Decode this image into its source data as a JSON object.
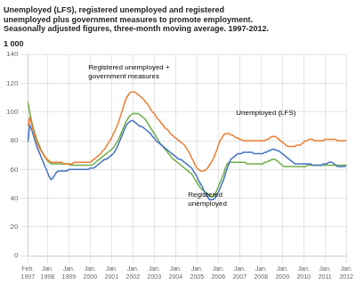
{
  "chart_data": {
    "type": "line",
    "title": [
      "Unemployed (LFS), registered unemployed and registered",
      "unemployed plus government measures to promote employment.",
      "Seasonally adjusted figures, three-month moving average. 1997-2012."
    ],
    "ylabel": "1 000",
    "categories": [
      "Feb.\n1997",
      null,
      null,
      null,
      null,
      null,
      null,
      null,
      null,
      null,
      null,
      "Jan.\n1998",
      null,
      null,
      null,
      null,
      null,
      null,
      null,
      null,
      null,
      null,
      null,
      "Jan.\n1999",
      null,
      null,
      null,
      null,
      null,
      null,
      null,
      null,
      null,
      null,
      null,
      "Jan.\n2000",
      null,
      null,
      null,
      null,
      null,
      null,
      null,
      null,
      null,
      null,
      null,
      "Jan.\n2001",
      null,
      null,
      null,
      null,
      null,
      null,
      null,
      null,
      null,
      null,
      null,
      "Jan.\n2002",
      null,
      null,
      null,
      null,
      null,
      null,
      null,
      null,
      null,
      null,
      null,
      "Jan.\n2003",
      null,
      null,
      null,
      null,
      null,
      null,
      null,
      null,
      null,
      null,
      null,
      "Jan.\n2004",
      null,
      null,
      null,
      null,
      null,
      null,
      null,
      null,
      null,
      null,
      null,
      "Jan.\n2005",
      null,
      null,
      null,
      null,
      null,
      null,
      null,
      null,
      null,
      null,
      null,
      "Jan.\n2006",
      null,
      null,
      null,
      null,
      null,
      null,
      null,
      null,
      null,
      null,
      null,
      "Jan.\n2007",
      null,
      null,
      null,
      null,
      null,
      null,
      null,
      null,
      null,
      null,
      null,
      "Jan.\n2008",
      null,
      null,
      null,
      null,
      null,
      null,
      null,
      null,
      null,
      null,
      null,
      "Jan.\n2009",
      null,
      null,
      null,
      null,
      null,
      null,
      null,
      null,
      null,
      null,
      null,
      "Jan.\n2010",
      null,
      null,
      null,
      null,
      null,
      null,
      null,
      null,
      null,
      null,
      null,
      "Jan.\n2011",
      null,
      null,
      null,
      null,
      null,
      null,
      null,
      null,
      null,
      null,
      null,
      "Jan.\n2012"
    ],
    "series": [
      {
        "name": "Registered unemployed + government measures",
        "color": "#ED7D31",
        "values": [
          90,
          96,
          92,
          87,
          83,
          79,
          76,
          74,
          72,
          70,
          68,
          67,
          66,
          65,
          65,
          65,
          65,
          65,
          65,
          65,
          64,
          64,
          64,
          64,
          64,
          64,
          65,
          65,
          65,
          65,
          65,
          65,
          65,
          65,
          65,
          65,
          66,
          67,
          68,
          69,
          70,
          71,
          73,
          74,
          76,
          78,
          80,
          82,
          85,
          87,
          90,
          93,
          97,
          101,
          105,
          109,
          111,
          113,
          114,
          114,
          114,
          113,
          112,
          111,
          110,
          109,
          107,
          106,
          104,
          102,
          100,
          99,
          97,
          95,
          94,
          92,
          91,
          89,
          88,
          87,
          85,
          84,
          83,
          82,
          81,
          80,
          79,
          78,
          77,
          75,
          73,
          71,
          68,
          66,
          63,
          61,
          60,
          59,
          59,
          59,
          60,
          61,
          63,
          65,
          67,
          70,
          73,
          77,
          80,
          82,
          84,
          85,
          85,
          85,
          84,
          84,
          83,
          82,
          82,
          81,
          81,
          80,
          80,
          80,
          80,
          80,
          80,
          80,
          80,
          80,
          80,
          80,
          80,
          80,
          81,
          81,
          82,
          83,
          83,
          83,
          82,
          81,
          80,
          79,
          78,
          77,
          76,
          76,
          76,
          76,
          76,
          77,
          77,
          77,
          78,
          79,
          80,
          80,
          81,
          81,
          81,
          80,
          80,
          80,
          80,
          80,
          80,
          81,
          81,
          81,
          81,
          81,
          81,
          81,
          80,
          80,
          80,
          80,
          80,
          80
        ]
      },
      {
        "name": "Unemployed (LFS)",
        "color": "#4472C4",
        "values": [
          79,
          91,
          88,
          84,
          80,
          76,
          73,
          70,
          67,
          64,
          61,
          58,
          55,
          53,
          54,
          56,
          58,
          59,
          59,
          59,
          59,
          59,
          59,
          60,
          60,
          60,
          60,
          60,
          60,
          60,
          60,
          60,
          60,
          60,
          60,
          61,
          61,
          61,
          62,
          63,
          64,
          65,
          66,
          67,
          67,
          68,
          69,
          70,
          71,
          73,
          75,
          78,
          81,
          84,
          87,
          90,
          92,
          93,
          94,
          94,
          93,
          92,
          91,
          90,
          90,
          89,
          88,
          87,
          86,
          85,
          83,
          82,
          80,
          79,
          78,
          77,
          76,
          75,
          74,
          73,
          72,
          71,
          70,
          69,
          68,
          67,
          67,
          66,
          65,
          64,
          63,
          62,
          61,
          59,
          57,
          55,
          52,
          50,
          48,
          45,
          43,
          41,
          39,
          39,
          39,
          40,
          42,
          44,
          47,
          50,
          53,
          57,
          61,
          64,
          67,
          68,
          69,
          70,
          71,
          71,
          71,
          72,
          72,
          72,
          72,
          72,
          72,
          71,
          71,
          71,
          71,
          71,
          71,
          72,
          72,
          73,
          73,
          74,
          74,
          74,
          73,
          73,
          72,
          71,
          70,
          69,
          68,
          67,
          66,
          65,
          64,
          64,
          64,
          64,
          64,
          64,
          64,
          64,
          64,
          64,
          63,
          63,
          63,
          63,
          63,
          63,
          64,
          64,
          64,
          65,
          65,
          65,
          64,
          63,
          62,
          62,
          62,
          62,
          62,
          63
        ]
      },
      {
        "name": "Registered unemployed",
        "color": "#70AD47",
        "values": [
          107,
          100,
          94,
          89,
          85,
          81,
          78,
          75,
          72,
          70,
          68,
          66,
          65,
          64,
          64,
          64,
          64,
          64,
          64,
          64,
          64,
          64,
          64,
          64,
          63,
          63,
          63,
          63,
          63,
          63,
          63,
          63,
          63,
          63,
          63,
          63,
          63,
          64,
          65,
          66,
          67,
          68,
          69,
          70,
          71,
          72,
          73,
          74,
          75,
          77,
          79,
          81,
          84,
          87,
          90,
          93,
          95,
          97,
          98,
          99,
          99,
          99,
          99,
          98,
          97,
          96,
          95,
          93,
          91,
          89,
          87,
          85,
          83,
          81,
          79,
          77,
          76,
          74,
          73,
          71,
          70,
          68,
          67,
          66,
          65,
          64,
          63,
          62,
          61,
          60,
          59,
          58,
          57,
          55,
          53,
          51,
          49,
          47,
          46,
          45,
          44,
          43,
          42,
          41,
          41,
          43,
          45,
          48,
          51,
          54,
          57,
          61,
          64,
          65,
          65,
          65,
          65,
          65,
          65,
          65,
          65,
          65,
          65,
          64,
          64,
          64,
          64,
          64,
          64,
          64,
          64,
          64,
          64,
          65,
          65,
          66,
          66,
          67,
          67,
          67,
          66,
          65,
          64,
          63,
          62,
          62,
          62,
          62,
          62,
          62,
          62,
          62,
          62,
          62,
          62,
          62,
          62,
          63,
          63,
          63,
          63,
          63,
          63,
          63,
          63,
          63,
          63,
          63,
          63,
          63,
          63,
          63,
          63,
          63,
          63,
          63,
          63,
          63,
          63,
          63
        ]
      }
    ],
    "annotations": [
      {
        "text": "Registered unemployed +\ngovernment measures",
        "x": 33,
        "y": 122
      },
      {
        "text": "Unemployed (LFS)",
        "x": 116,
        "y": 97
      },
      {
        "text": "Registered\nunemployed",
        "x": 89,
        "y": 46
      }
    ],
    "ylim": [
      0,
      140
    ],
    "yticks": [
      0,
      20,
      40,
      60,
      80,
      100,
      120,
      140
    ],
    "grid": true,
    "legend": false
  }
}
